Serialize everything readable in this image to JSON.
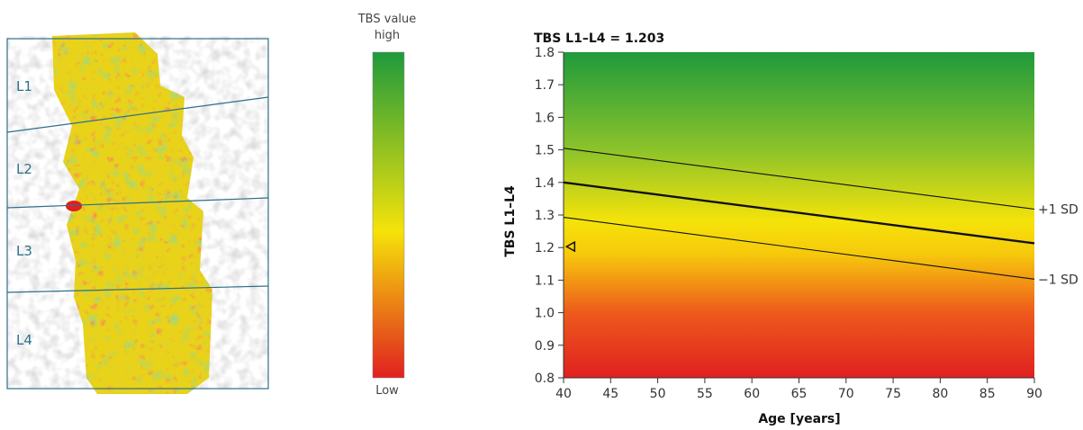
{
  "scan": {
    "vertebra_labels": [
      "L1",
      "L2",
      "L3",
      "L4"
    ]
  },
  "legend": {
    "title_line1": "TBS value",
    "title_line2": "high",
    "low_label": "Low",
    "colors": {
      "high": "#1e9a3c",
      "mid": "#f5e30a",
      "low": "#e02020"
    }
  },
  "chart_data": {
    "type": "line",
    "title": "TBS L1–L4 = 1.203",
    "xlabel": "Age [years]",
    "ylabel": "TBS L1–L4",
    "xlim": [
      40,
      90
    ],
    "ylim": [
      0.8,
      1.8
    ],
    "x_ticks": [
      40,
      45,
      50,
      55,
      60,
      65,
      70,
      75,
      80,
      85,
      90
    ],
    "y_ticks": [
      0.8,
      0.9,
      1.0,
      1.1,
      1.2,
      1.3,
      1.4,
      1.5,
      1.6,
      1.7,
      1.8
    ],
    "series": [
      {
        "name": "+1 SD",
        "x": [
          40,
          90
        ],
        "y": [
          1.505,
          1.318
        ]
      },
      {
        "name": "",
        "x": [
          40,
          90
        ],
        "y": [
          1.4,
          1.213
        ]
      },
      {
        "name": "−1 SD",
        "x": [
          40,
          90
        ],
        "y": [
          1.293,
          1.103
        ]
      }
    ],
    "patient_point": {
      "x": 40.7,
      "y": 1.203
    },
    "background_gradient": [
      "#1e9a3c",
      "#f5e30a",
      "#e02020"
    ]
  }
}
